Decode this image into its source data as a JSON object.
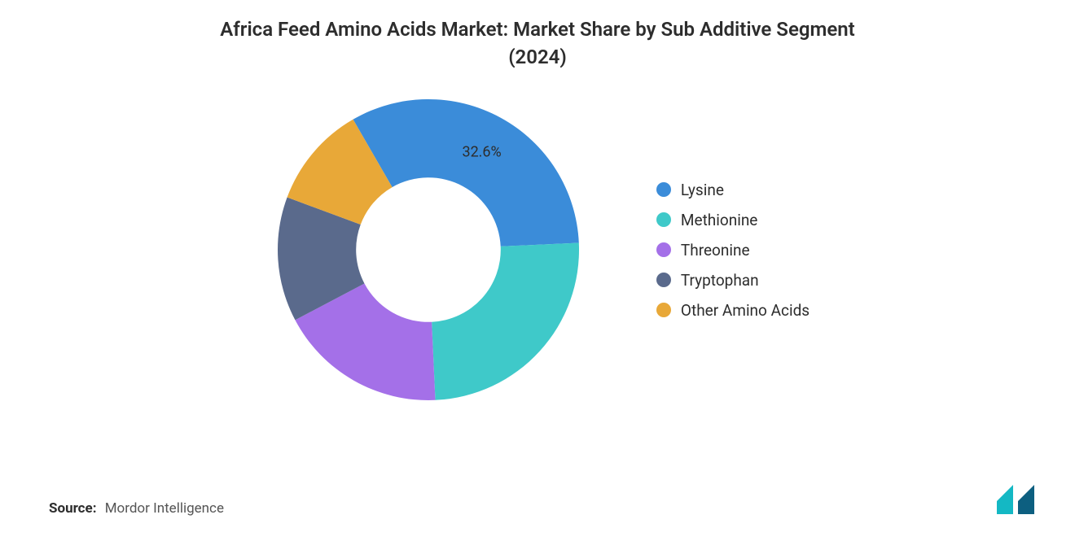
{
  "chart": {
    "type": "donut",
    "title_line1": "Africa Feed Amino Acids Market: Market Share by Sub Additive Segment",
    "title_line2": "(2024)",
    "title_fontsize": 24,
    "title_color": "#2d2d2d",
    "background_color": "#ffffff",
    "inner_radius_ratio": 0.48,
    "outer_radius": 185,
    "start_angle_deg": -30,
    "segments": [
      {
        "label": "Lysine",
        "value": 32.6,
        "color": "#3b8cd9",
        "show_label": true,
        "label_text": "32.6%"
      },
      {
        "label": "Methionine",
        "value": 25.0,
        "color": "#3fc9c9",
        "show_label": false,
        "label_text": ""
      },
      {
        "label": "Threonine",
        "value": 18.0,
        "color": "#a470e8",
        "show_label": false,
        "label_text": ""
      },
      {
        "label": "Tryptophan",
        "value": 13.4,
        "color": "#5a6a8c",
        "show_label": false,
        "label_text": ""
      },
      {
        "label": "Other Amino Acids",
        "value": 11.0,
        "color": "#e8a838",
        "show_label": false,
        "label_text": ""
      }
    ],
    "legend": {
      "position": "right",
      "fontsize": 19,
      "text_color": "#2d2d2d",
      "dot_radius": 9
    },
    "label_fontsize": 18,
    "label_color": "#2d2d2d"
  },
  "source": {
    "key": "Source:",
    "value": "Mordor Intelligence",
    "fontsize": 17
  },
  "logo": {
    "bar1_color": "#14b8c4",
    "bar2_color": "#0d5f80",
    "width": 60,
    "height": 40
  }
}
